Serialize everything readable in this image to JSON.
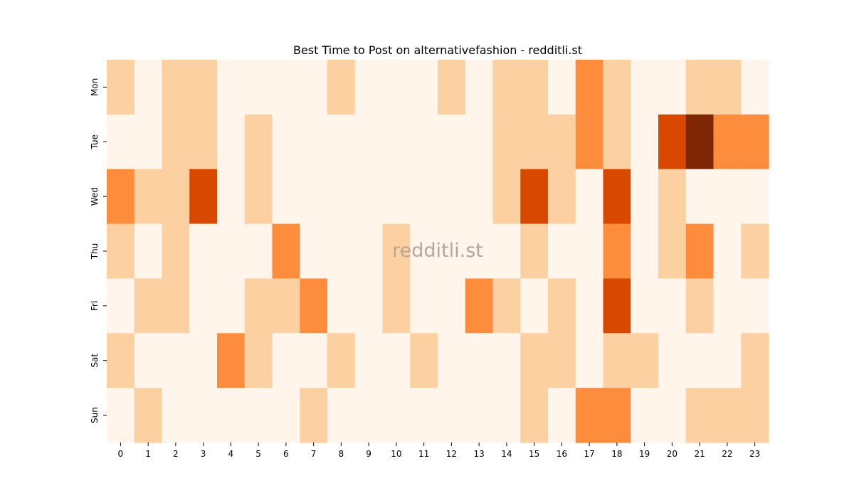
{
  "chart_data": {
    "type": "heatmap",
    "title": "Best Time to Post on alternativefashion - redditli.st",
    "watermark": "redditli.st",
    "xlabel": "",
    "ylabel": "",
    "x": [
      "0",
      "1",
      "2",
      "3",
      "4",
      "5",
      "6",
      "7",
      "8",
      "9",
      "10",
      "11",
      "12",
      "13",
      "14",
      "15",
      "16",
      "17",
      "18",
      "19",
      "20",
      "21",
      "22",
      "23"
    ],
    "y": [
      "Mon",
      "Tue",
      "Wed",
      "Thu",
      "Fri",
      "Sat",
      "Sun"
    ],
    "values": [
      [
        1,
        0,
        1,
        1,
        0,
        0,
        0,
        0,
        1,
        0,
        0,
        0,
        1,
        0,
        1,
        1,
        0,
        2,
        1,
        0,
        0,
        1,
        1,
        0
      ],
      [
        0,
        0,
        1,
        1,
        0,
        1,
        0,
        0,
        0,
        0,
        0,
        0,
        0,
        0,
        1,
        1,
        1,
        2,
        1,
        0,
        3,
        4,
        2,
        2
      ],
      [
        2,
        1,
        1,
        3,
        0,
        1,
        0,
        0,
        0,
        0,
        0,
        0,
        0,
        0,
        1,
        3,
        1,
        0,
        3,
        0,
        1,
        0,
        0,
        0
      ],
      [
        1,
        0,
        1,
        0,
        0,
        0,
        2,
        0,
        0,
        0,
        1,
        0,
        0,
        0,
        0,
        1,
        0,
        0,
        2,
        0,
        1,
        2,
        0,
        1
      ],
      [
        0,
        1,
        1,
        0,
        0,
        1,
        1,
        2,
        0,
        0,
        1,
        0,
        0,
        2,
        1,
        0,
        1,
        0,
        3,
        0,
        0,
        1,
        0,
        0
      ],
      [
        1,
        0,
        0,
        0,
        2,
        1,
        0,
        0,
        1,
        0,
        0,
        1,
        0,
        0,
        0,
        1,
        1,
        0,
        1,
        1,
        0,
        0,
        0,
        1
      ],
      [
        0,
        1,
        0,
        0,
        0,
        0,
        0,
        1,
        0,
        0,
        0,
        0,
        0,
        0,
        0,
        1,
        0,
        2,
        2,
        0,
        0,
        1,
        1,
        1
      ]
    ],
    "vmin": 0,
    "vmax": 4,
    "colormap": "Oranges",
    "level_colors": [
      "#fff5eb",
      "#fdd0a2",
      "#fd8d3c",
      "#d94801",
      "#7f2704"
    ],
    "colorbar": false,
    "grid": false
  }
}
